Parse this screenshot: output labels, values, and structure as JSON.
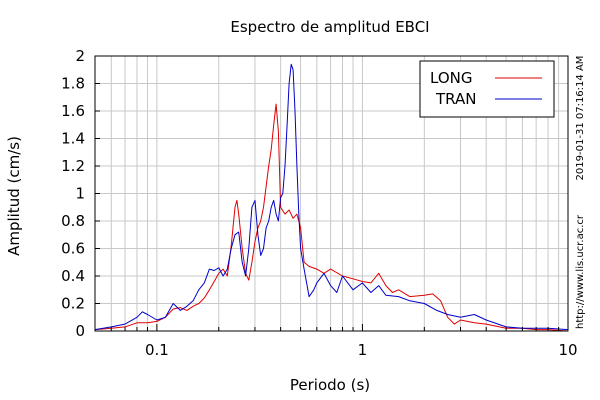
{
  "chart_data": {
    "type": "line",
    "title": "Espectro de amplitud EBCI",
    "xlabel": "Periodo (s)",
    "ylabel": "Amplitud (cm/s)",
    "xscale": "log",
    "xlim": [
      0.05,
      10
    ],
    "ylim": [
      0,
      2
    ],
    "grid": true,
    "legend_position": "top-right",
    "x_ticks": [
      {
        "value": 0.1,
        "label": "0.1"
      },
      {
        "value": 1,
        "label": "1"
      },
      {
        "value": 10,
        "label": "10"
      }
    ],
    "y_ticks": [
      {
        "value": 0,
        "label": "0"
      },
      {
        "value": 0.2,
        "label": "0.2"
      },
      {
        "value": 0.4,
        "label": "0.4"
      },
      {
        "value": 0.6,
        "label": "0.6"
      },
      {
        "value": 0.8,
        "label": "0.8"
      },
      {
        "value": 1,
        "label": "1"
      },
      {
        "value": 1.2,
        "label": "1.2"
      },
      {
        "value": 1.4,
        "label": "1.4"
      },
      {
        "value": 1.6,
        "label": "1.6"
      },
      {
        "value": 1.8,
        "label": "1.8"
      },
      {
        "value": 2,
        "label": "2"
      }
    ],
    "series": [
      {
        "name": "LONG",
        "color": "#e00000",
        "points": [
          [
            0.05,
            0.01
          ],
          [
            0.06,
            0.02
          ],
          [
            0.07,
            0.03
          ],
          [
            0.08,
            0.06
          ],
          [
            0.09,
            0.06
          ],
          [
            0.1,
            0.07
          ],
          [
            0.11,
            0.1
          ],
          [
            0.12,
            0.16
          ],
          [
            0.13,
            0.17
          ],
          [
            0.14,
            0.15
          ],
          [
            0.15,
            0.18
          ],
          [
            0.16,
            0.2
          ],
          [
            0.17,
            0.24
          ],
          [
            0.18,
            0.3
          ],
          [
            0.19,
            0.36
          ],
          [
            0.2,
            0.42
          ],
          [
            0.21,
            0.45
          ],
          [
            0.22,
            0.4
          ],
          [
            0.23,
            0.62
          ],
          [
            0.24,
            0.9
          ],
          [
            0.245,
            0.95
          ],
          [
            0.25,
            0.85
          ],
          [
            0.26,
            0.6
          ],
          [
            0.27,
            0.42
          ],
          [
            0.28,
            0.37
          ],
          [
            0.29,
            0.5
          ],
          [
            0.3,
            0.65
          ],
          [
            0.31,
            0.75
          ],
          [
            0.32,
            0.8
          ],
          [
            0.33,
            0.9
          ],
          [
            0.34,
            1.05
          ],
          [
            0.35,
            1.2
          ],
          [
            0.36,
            1.32
          ],
          [
            0.37,
            1.5
          ],
          [
            0.38,
            1.65
          ],
          [
            0.39,
            1.45
          ],
          [
            0.4,
            0.9
          ],
          [
            0.42,
            0.85
          ],
          [
            0.44,
            0.88
          ],
          [
            0.46,
            0.82
          ],
          [
            0.48,
            0.85
          ],
          [
            0.5,
            0.75
          ],
          [
            0.52,
            0.5
          ],
          [
            0.55,
            0.47
          ],
          [
            0.6,
            0.45
          ],
          [
            0.65,
            0.42
          ],
          [
            0.7,
            0.45
          ],
          [
            0.8,
            0.4
          ],
          [
            0.9,
            0.38
          ],
          [
            1.0,
            0.36
          ],
          [
            1.1,
            0.35
          ],
          [
            1.2,
            0.42
          ],
          [
            1.3,
            0.33
          ],
          [
            1.4,
            0.28
          ],
          [
            1.5,
            0.3
          ],
          [
            1.7,
            0.25
          ],
          [
            2.0,
            0.26
          ],
          [
            2.2,
            0.27
          ],
          [
            2.4,
            0.22
          ],
          [
            2.6,
            0.1
          ],
          [
            2.8,
            0.05
          ],
          [
            3.0,
            0.08
          ],
          [
            3.5,
            0.06
          ],
          [
            4.0,
            0.05
          ],
          [
            5.0,
            0.02
          ],
          [
            6.0,
            0.02
          ],
          [
            7.0,
            0.01
          ],
          [
            8.0,
            0.01
          ],
          [
            10.0,
            0.0
          ]
        ]
      },
      {
        "name": "TRAN",
        "color": "#0000c8",
        "points": [
          [
            0.05,
            0.01
          ],
          [
            0.06,
            0.03
          ],
          [
            0.07,
            0.05
          ],
          [
            0.08,
            0.1
          ],
          [
            0.085,
            0.14
          ],
          [
            0.09,
            0.12
          ],
          [
            0.1,
            0.08
          ],
          [
            0.11,
            0.1
          ],
          [
            0.12,
            0.2
          ],
          [
            0.13,
            0.15
          ],
          [
            0.14,
            0.18
          ],
          [
            0.15,
            0.22
          ],
          [
            0.16,
            0.3
          ],
          [
            0.17,
            0.35
          ],
          [
            0.18,
            0.45
          ],
          [
            0.19,
            0.44
          ],
          [
            0.2,
            0.46
          ],
          [
            0.21,
            0.4
          ],
          [
            0.22,
            0.45
          ],
          [
            0.23,
            0.6
          ],
          [
            0.24,
            0.7
          ],
          [
            0.25,
            0.72
          ],
          [
            0.26,
            0.5
          ],
          [
            0.27,
            0.4
          ],
          [
            0.28,
            0.6
          ],
          [
            0.29,
            0.9
          ],
          [
            0.3,
            0.95
          ],
          [
            0.31,
            0.7
          ],
          [
            0.32,
            0.55
          ],
          [
            0.33,
            0.6
          ],
          [
            0.34,
            0.75
          ],
          [
            0.35,
            0.8
          ],
          [
            0.36,
            0.9
          ],
          [
            0.37,
            0.95
          ],
          [
            0.38,
            0.85
          ],
          [
            0.39,
            0.8
          ],
          [
            0.4,
            0.97
          ],
          [
            0.41,
            1.0
          ],
          [
            0.42,
            1.2
          ],
          [
            0.43,
            1.5
          ],
          [
            0.44,
            1.8
          ],
          [
            0.45,
            1.94
          ],
          [
            0.46,
            1.9
          ],
          [
            0.47,
            1.6
          ],
          [
            0.48,
            1.2
          ],
          [
            0.49,
            0.85
          ],
          [
            0.5,
            0.6
          ],
          [
            0.52,
            0.45
          ],
          [
            0.55,
            0.25
          ],
          [
            0.58,
            0.3
          ],
          [
            0.6,
            0.35
          ],
          [
            0.65,
            0.42
          ],
          [
            0.7,
            0.33
          ],
          [
            0.75,
            0.28
          ],
          [
            0.8,
            0.4
          ],
          [
            0.9,
            0.3
          ],
          [
            1.0,
            0.35
          ],
          [
            1.1,
            0.28
          ],
          [
            1.2,
            0.33
          ],
          [
            1.3,
            0.26
          ],
          [
            1.5,
            0.25
          ],
          [
            1.7,
            0.22
          ],
          [
            2.0,
            0.2
          ],
          [
            2.3,
            0.15
          ],
          [
            2.6,
            0.12
          ],
          [
            3.0,
            0.1
          ],
          [
            3.5,
            0.12
          ],
          [
            4.0,
            0.08
          ],
          [
            5.0,
            0.03
          ],
          [
            6.0,
            0.02
          ],
          [
            8.0,
            0.02
          ],
          [
            10.0,
            0.01
          ]
        ]
      }
    ]
  },
  "side_annotations": {
    "timestamp": "2019-01-31 07:16:14 AM",
    "url": "http://www.lis.ucr.ac.cr"
  }
}
